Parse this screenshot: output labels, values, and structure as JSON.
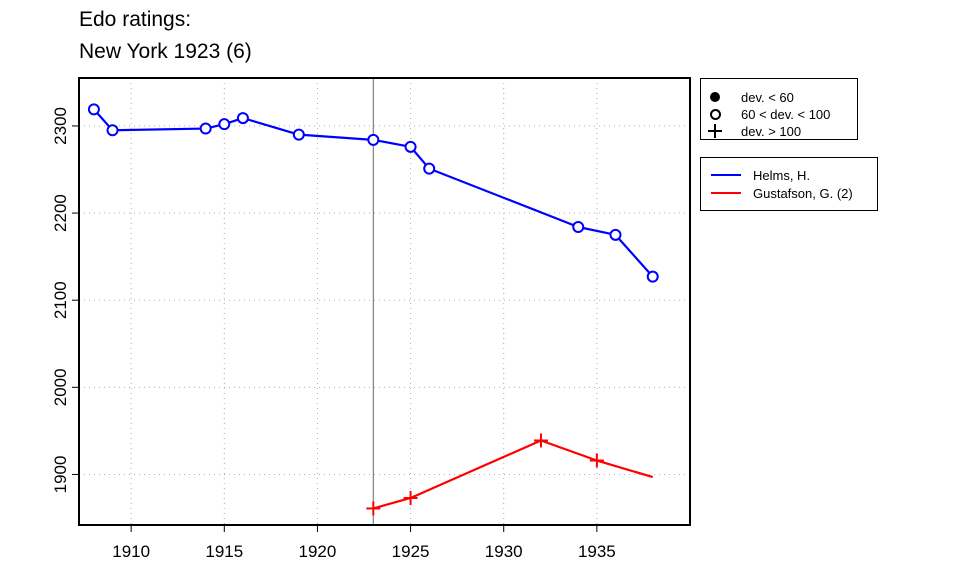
{
  "title": {
    "line1": "Edo ratings:",
    "line2": "New York 1923 (6)"
  },
  "legend_deviation": {
    "items": [
      {
        "symbol": "filled-circle-icon",
        "label": "dev. < 60"
      },
      {
        "symbol": "open-circle-icon",
        "label": "60 < dev. < 100"
      },
      {
        "symbol": "plus-icon",
        "label": "dev. > 100"
      }
    ]
  },
  "legend_series": {
    "items": [
      {
        "label": "Helms, H.",
        "color": "#0000ff"
      },
      {
        "label": "Gustafson, G. (2)",
        "color": "#ff0000"
      }
    ]
  },
  "chart_data": {
    "type": "line",
    "title": "Edo ratings:\nNew York 1923 (6)",
    "xlabel": "",
    "ylabel": "",
    "xlim": [
      1907.2,
      1940.0
    ],
    "ylim": [
      1842,
      2355
    ],
    "x_ticks": [
      1910,
      1915,
      1920,
      1925,
      1930,
      1935
    ],
    "y_ticks": [
      1900,
      2000,
      2100,
      2200,
      2300
    ],
    "grid": true,
    "reference_line_x": 1923,
    "legend_placement": "right",
    "series": [
      {
        "name": "Helms, H.",
        "color": "#0000ff",
        "points": [
          {
            "x": 1908,
            "y": 2319,
            "marker": "open-circle"
          },
          {
            "x": 1909,
            "y": 2295,
            "marker": "open-circle"
          },
          {
            "x": 1914,
            "y": 2297,
            "marker": "open-circle"
          },
          {
            "x": 1915,
            "y": 2302,
            "marker": "open-circle"
          },
          {
            "x": 1916,
            "y": 2309,
            "marker": "open-circle"
          },
          {
            "x": 1919,
            "y": 2290,
            "marker": "open-circle"
          },
          {
            "x": 1923,
            "y": 2284,
            "marker": "open-circle"
          },
          {
            "x": 1925,
            "y": 2276,
            "marker": "open-circle"
          },
          {
            "x": 1926,
            "y": 2251,
            "marker": "open-circle"
          },
          {
            "x": 1934,
            "y": 2184,
            "marker": "open-circle"
          },
          {
            "x": 1936,
            "y": 2175,
            "marker": "open-circle"
          },
          {
            "x": 1938,
            "y": 2127,
            "marker": "open-circle"
          }
        ]
      },
      {
        "name": "Gustafson, G. (2)",
        "color": "#ff0000",
        "points": [
          {
            "x": 1923,
            "y": 1861,
            "marker": "plus"
          },
          {
            "x": 1925,
            "y": 1873,
            "marker": "plus"
          },
          {
            "x": 1932,
            "y": 1939,
            "marker": "plus"
          },
          {
            "x": 1935,
            "y": 1916,
            "marker": "plus"
          },
          {
            "x": 1938,
            "y": 1897,
            "marker": "none"
          }
        ]
      }
    ]
  }
}
